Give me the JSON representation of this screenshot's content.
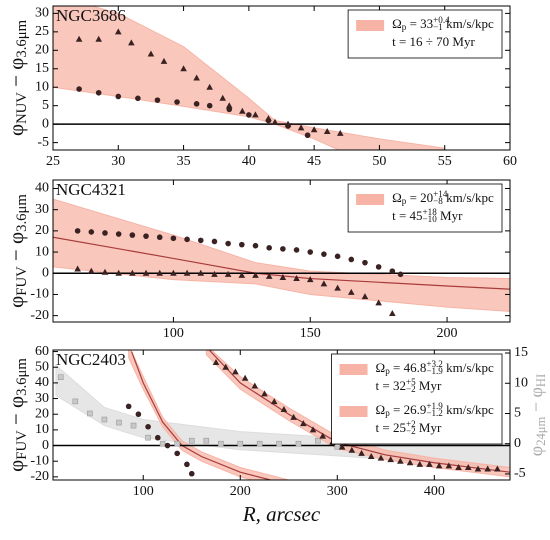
{
  "chart_data": [
    {
      "type": "scatter",
      "title": "NGC3686",
      "ylabel": [
        {
          "text": "φ"
        },
        {
          "text": "NUV",
          "script": "sub"
        },
        {
          "text": " − φ"
        },
        {
          "text": "3.6μm",
          "script": "sub"
        }
      ],
      "xlim": [
        25,
        60
      ],
      "ylim": [
        -7,
        32
      ],
      "xticks": [
        25,
        30,
        35,
        40,
        45,
        50,
        55,
        60
      ],
      "yticks": [
        -5,
        0,
        5,
        10,
        15,
        20,
        25,
        30
      ],
      "hline": 0,
      "bands": [
        {
          "color": "#f7b4a6",
          "x": [
            25,
            30,
            35,
            40,
            42,
            45,
            50,
            55
          ],
          "upper": [
            35,
            30,
            21,
            7,
            1,
            -1,
            -4,
            -6.5
          ],
          "lower": [
            10,
            7.5,
            4.8,
            2,
            0,
            -4,
            -12,
            -20
          ],
          "label": [
            [
              {
                "text": "Ω"
              },
              {
                "text": "p",
                "script": "sub"
              },
              {
                "text": " = 33"
              },
              {
                "text": "+0.4",
                "script": "sup"
              },
              {
                "text": "−1",
                "script": "sub"
              },
              {
                "text": " km/s/kpc"
              }
            ],
            [
              {
                "text": "t = 16 ÷ 70 Myr"
              }
            ]
          ]
        }
      ],
      "series": [
        {
          "marker": "circle",
          "color": "#3b2222",
          "x": [
            27,
            28.5,
            30,
            31.5,
            33,
            34.5,
            36,
            37,
            38.5,
            40,
            41.5,
            43,
            44.5
          ],
          "y": [
            9.5,
            8.5,
            7.5,
            7,
            6.5,
            6,
            5.5,
            5,
            4,
            2.5,
            1,
            -0.5,
            -3
          ]
        },
        {
          "marker": "triangle",
          "color": "#3b2222",
          "x": [
            27,
            28.5,
            30,
            31,
            32.5,
            33.5,
            35,
            36,
            37,
            38,
            38.5,
            39.5,
            40.5,
            41.5,
            42,
            43,
            44,
            45,
            46,
            47
          ],
          "y": [
            23,
            23,
            25,
            22,
            19,
            17,
            15,
            12.5,
            10,
            7,
            5,
            3.5,
            2.5,
            1.5,
            0.5,
            0,
            -1,
            -1.5,
            -2,
            -2.5
          ]
        }
      ]
    },
    {
      "type": "scatter",
      "title": "NGC4321",
      "ylabel": [
        {
          "text": "φ"
        },
        {
          "text": "FUV",
          "script": "sub"
        },
        {
          "text": " − φ"
        },
        {
          "text": "3.6μm",
          "script": "sub"
        }
      ],
      "xlim": [
        56,
        223
      ],
      "ylim": [
        -23,
        44
      ],
      "xticks": [
        100,
        150,
        200
      ],
      "yticks": [
        -20,
        -10,
        0,
        10,
        20,
        30,
        40
      ],
      "hline": 0,
      "bands": [
        {
          "color": "#f7b4a6",
          "x": [
            56,
            100,
            130,
            150,
            200,
            223
          ],
          "upper": [
            35,
            18,
            5,
            1,
            -2,
            -2.5
          ],
          "lower": [
            3,
            -3,
            -5,
            -10,
            -16,
            -18
          ],
          "label": [
            [
              {
                "text": "Ω"
              },
              {
                "text": "p",
                "script": "sub"
              },
              {
                "text": " = 20"
              },
              {
                "text": "+14",
                "script": "sup"
              },
              {
                "text": "−8",
                "script": "sub"
              },
              {
                "text": " km/s/kpc"
              }
            ],
            [
              {
                "text": "t = 45"
              },
              {
                "text": "+18",
                "script": "sup"
              },
              {
                "text": "−10",
                "script": "sub"
              },
              {
                "text": " Myr"
              }
            ]
          ]
        }
      ],
      "lines": [
        {
          "color": "#a83c3c",
          "x": [
            56,
            100,
            130,
            150,
            200,
            223
          ],
          "y": [
            17,
            7,
            0,
            -2.5,
            -6,
            -7.5
          ]
        }
      ],
      "series": [
        {
          "marker": "circle",
          "color": "#3b2222",
          "x": [
            65,
            70,
            75,
            80,
            85,
            90,
            95,
            100,
            105,
            110,
            115,
            120,
            125,
            130,
            135,
            140,
            145,
            150,
            155,
            160,
            165,
            170,
            175,
            180,
            183
          ],
          "y": [
            20,
            19.5,
            19,
            18.5,
            18,
            17.5,
            17,
            16.5,
            16,
            15.5,
            15,
            14,
            13.5,
            13,
            12,
            11.5,
            11,
            10,
            9,
            8,
            6.5,
            5,
            3,
            1,
            -0.5
          ]
        },
        {
          "marker": "triangle",
          "color": "#3b2222",
          "x": [
            65,
            70,
            75,
            80,
            85,
            90,
            95,
            100,
            105,
            110,
            115,
            120,
            125,
            130,
            135,
            140,
            145,
            150,
            155,
            160,
            165,
            170,
            175,
            180
          ],
          "y": [
            2,
            1,
            0.5,
            0,
            0,
            0,
            0,
            0,
            0,
            0,
            -0.5,
            -0.5,
            -1,
            -1,
            -1.5,
            -2,
            -2.5,
            -3,
            -5,
            -7,
            -9,
            -11,
            -14,
            -19
          ]
        }
      ]
    },
    {
      "type": "scatter",
      "title": "NGC2403",
      "ylabel": [
        {
          "text": "φ"
        },
        {
          "text": "FUV",
          "script": "sub"
        },
        {
          "text": " − φ"
        },
        {
          "text": "3.6μm",
          "script": "sub"
        }
      ],
      "y2label": [
        {
          "text": "φ"
        },
        {
          "text": "24μm",
          "script": "sub"
        },
        {
          "text": " − φ"
        },
        {
          "text": "HI",
          "script": "sub"
        }
      ],
      "xlabel": "R, arcsec",
      "xlim": [
        7,
        478
      ],
      "ylim": [
        -22,
        61
      ],
      "y2lim": [
        -6,
        15.5
      ],
      "xticks": [
        100,
        200,
        300,
        400
      ],
      "yticks": [
        -20,
        -10,
        0,
        10,
        20,
        30,
        40,
        50,
        60
      ],
      "y2ticks": [
        -5,
        0,
        5,
        10,
        15
      ],
      "hline": 0,
      "bands": [
        {
          "color": "#dddddd",
          "axis": "y2",
          "x": [
            10,
            60,
            100,
            150,
            200,
            300,
            478
          ],
          "upper": [
            13,
            6,
            4,
            3,
            2,
            1,
            0
          ],
          "lower": [
            8,
            3,
            1,
            0,
            -1,
            -2,
            -4
          ]
        },
        {
          "color": "#f7b4a6",
          "x": [
            85,
            100,
            120,
            140,
            160,
            200,
            250
          ],
          "upper": [
            64,
            44,
            18,
            3,
            -4,
            -14,
            -22
          ],
          "lower": [
            56,
            36,
            12,
            -3,
            -10,
            -20,
            -28
          ],
          "label": [
            [
              {
                "text": "Ω"
              },
              {
                "text": "p",
                "script": "sub"
              },
              {
                "text": " = 46.8"
              },
              {
                "text": "+3.2",
                "script": "sup"
              },
              {
                "text": "−1.9",
                "script": "sub"
              },
              {
                "text": " km/s/kpc"
              }
            ],
            [
              {
                "text": "t = 32"
              },
              {
                "text": "+5",
                "script": "sup"
              },
              {
                "text": "−2",
                "script": "sub"
              },
              {
                "text": " Myr"
              }
            ]
          ]
        },
        {
          "color": "#f7b4a6",
          "x": [
            165,
            200,
            250,
            300,
            350,
            400,
            478
          ],
          "upper": [
            64,
            44,
            24,
            6,
            -3,
            -8,
            -14
          ],
          "lower": [
            58,
            36,
            16,
            -2,
            -9,
            -14,
            -20
          ],
          "label": [
            [
              {
                "text": "Ω"
              },
              {
                "text": "p",
                "script": "sub"
              },
              {
                "text": " = 26.9"
              },
              {
                "text": "+1.9",
                "script": "sup"
              },
              {
                "text": "−1.2",
                "script": "sub"
              },
              {
                "text": " km/s/kpc"
              }
            ],
            [
              {
                "text": "t = 25"
              },
              {
                "text": "+2",
                "script": "sup"
              },
              {
                "text": "−2",
                "script": "sub"
              },
              {
                "text": " Myr"
              }
            ]
          ]
        }
      ],
      "lines": [
        {
          "color": "#a83c3c",
          "x": [
            88,
            100,
            120,
            140,
            160,
            200,
            250
          ],
          "y": [
            60,
            40,
            15,
            0,
            -7,
            -17,
            -25
          ]
        },
        {
          "color": "#a83c3c",
          "x": [
            168,
            200,
            250,
            300,
            350,
            400,
            478
          ],
          "y": [
            61,
            40,
            20,
            2,
            -6,
            -11,
            -17
          ]
        }
      ],
      "series": [
        {
          "marker": "square",
          "color": "#c8c8c8",
          "axis": "y2",
          "x": [
            15,
            30,
            45,
            60,
            75,
            90,
            105,
            120,
            135,
            150,
            165,
            180,
            200,
            220,
            240,
            260,
            280,
            300
          ],
          "y": [
            11,
            7,
            5,
            4,
            3.5,
            3,
            1,
            0,
            0,
            0.5,
            0.5,
            0,
            0,
            0,
            0,
            0,
            0.5,
            -0.5
          ]
        },
        {
          "marker": "circle",
          "color": "#3b2222",
          "x": [
            85,
            95,
            105,
            115,
            125,
            135,
            145,
            150
          ],
          "y": [
            25,
            20,
            12,
            5,
            0,
            -5,
            -12,
            -18
          ]
        },
        {
          "marker": "triangle",
          "color": "#3b2222",
          "x": [
            175,
            185,
            195,
            205,
            215,
            225,
            235,
            245,
            255,
            265,
            275,
            285,
            295,
            305,
            315,
            325,
            335,
            345,
            355,
            365,
            375,
            385,
            395,
            405,
            415,
            425,
            435,
            445,
            455,
            465
          ],
          "y": [
            53,
            50,
            47,
            43,
            38,
            33,
            28,
            23,
            18,
            14,
            10,
            6,
            2,
            -1,
            -3,
            -5,
            -7,
            -8,
            -9,
            -10,
            -11,
            -12,
            -12,
            -13,
            -13,
            -14,
            -14,
            -15,
            -15,
            -15
          ]
        }
      ]
    }
  ]
}
